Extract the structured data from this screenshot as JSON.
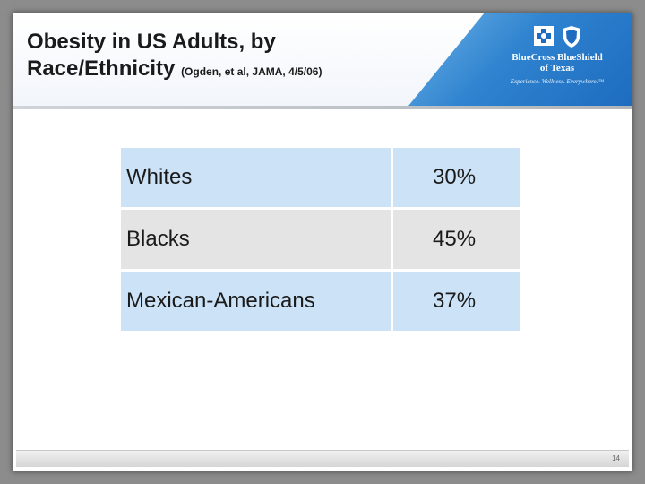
{
  "slide": {
    "title_line1": "Obesity in US Adults, by",
    "title_line2": "Race/Ethnicity",
    "citation": "(Ogden, et al, JAMA, 4/5/06)",
    "page_number": "14"
  },
  "logo": {
    "name_line1": "BlueCross BlueShield",
    "name_line2": "of Texas",
    "tagline": "Experience. Wellness. Everywhere.™",
    "icons": [
      "cross-icon",
      "shield-icon"
    ]
  },
  "table": {
    "rows": [
      {
        "label": "Whites",
        "value": "30%"
      },
      {
        "label": "Blacks",
        "value": "45%"
      },
      {
        "label": "Mexican-Americans",
        "value": "37%"
      }
    ]
  },
  "colors": {
    "row_light": "#cce3f7",
    "row_gray": "#e4e4e4",
    "header_blue": "#2f83cf"
  }
}
